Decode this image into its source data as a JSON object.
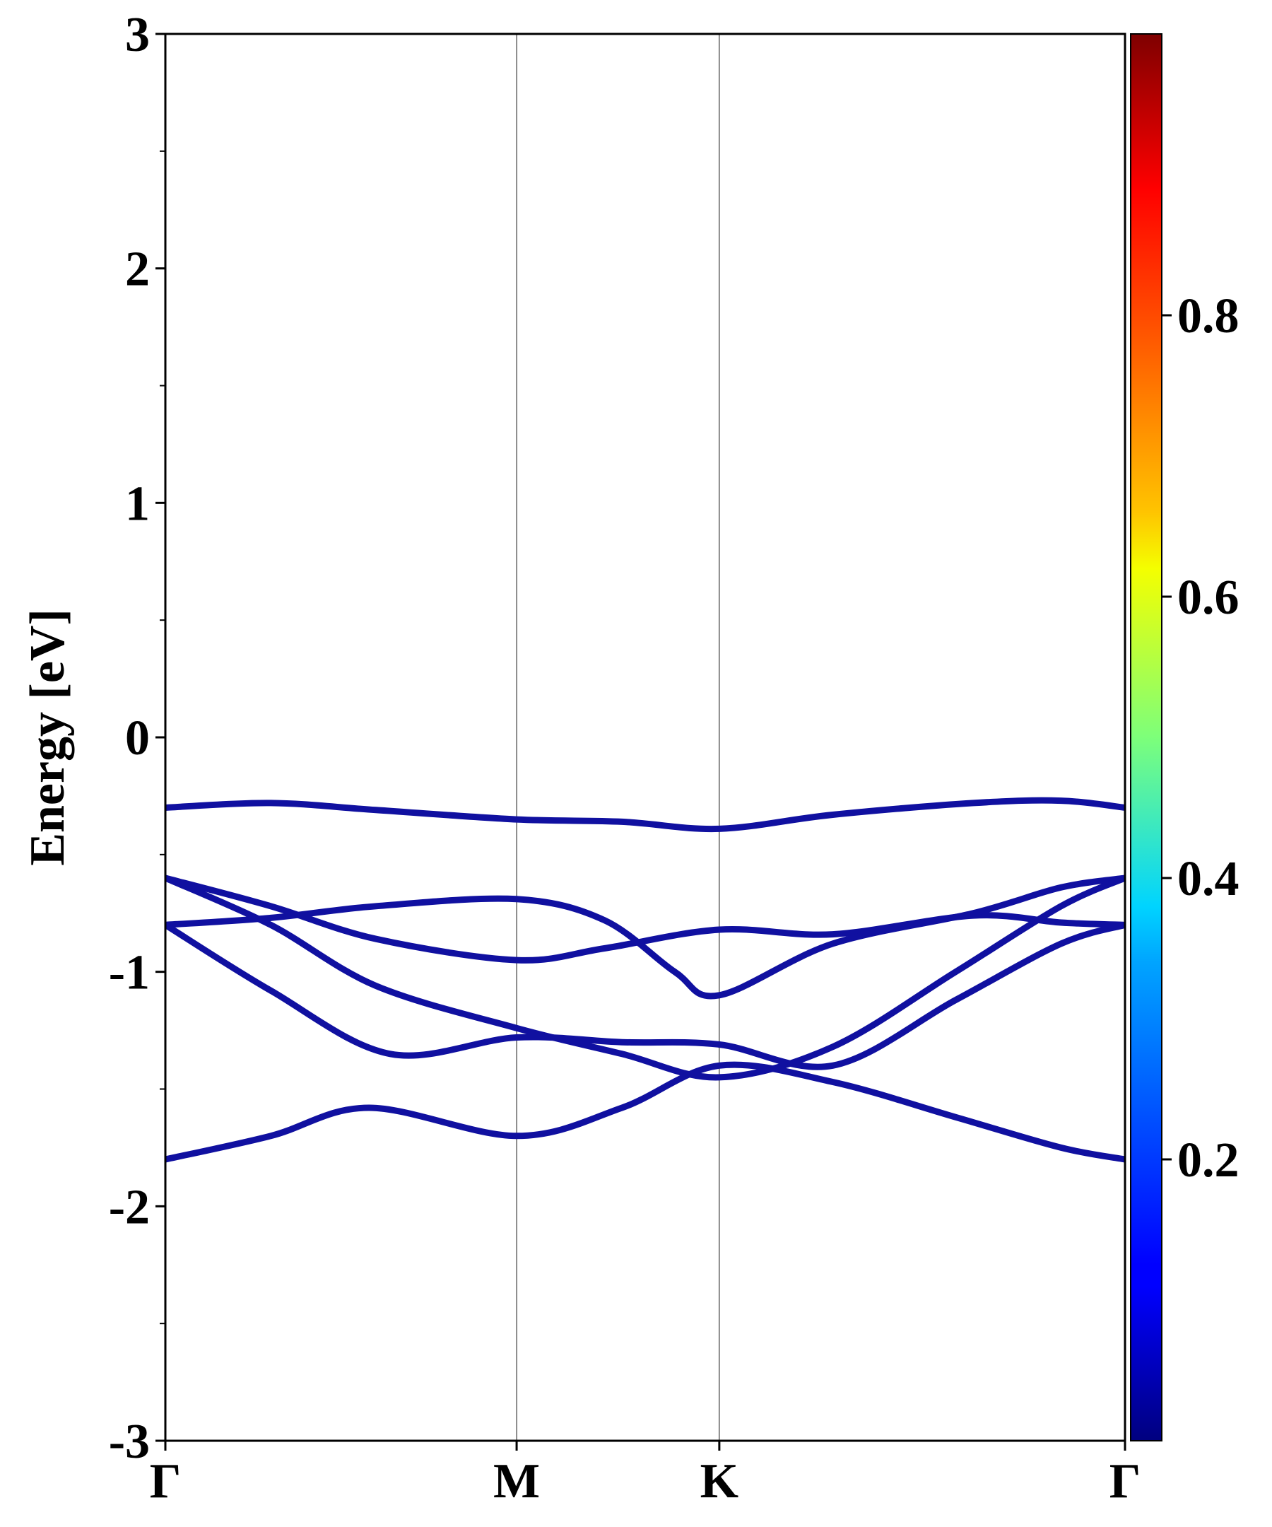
{
  "chart_data": {
    "type": "line",
    "ylabel": "Energy [eV]",
    "xlabel": "",
    "ylim": [
      -3,
      3
    ],
    "yticks": [
      3,
      2,
      1,
      0,
      -1,
      -2,
      -3
    ],
    "ytick_labels": [
      "3",
      "2",
      "1",
      "0",
      "-1",
      "-2",
      "-3"
    ],
    "kpath": {
      "labels": [
        "Γ",
        "M",
        "K",
        "Γ"
      ],
      "positions": [
        0,
        1,
        1.577,
        2.732
      ]
    },
    "band_color": "#1010a0",
    "grid": false,
    "colorbar": {
      "colormap": "jet",
      "range": [
        0,
        1
      ],
      "ticks": [
        0.2,
        0.4,
        0.6,
        0.8
      ],
      "tick_labels": [
        "0.2",
        "0.4",
        "0.6",
        "0.8"
      ]
    },
    "series": [
      {
        "x": [
          0,
          0.3,
          0.6,
          1,
          1.3,
          1.577,
          1.9,
          2.3,
          2.55,
          2.732
        ],
        "y": [
          -0.3,
          -0.28,
          -0.31,
          -0.35,
          -0.36,
          -0.39,
          -0.33,
          -0.28,
          -0.27,
          -0.3
        ]
      },
      {
        "x": [
          0,
          0.3,
          0.6,
          1,
          1.25,
          1.577,
          1.9,
          2.3,
          2.55,
          2.732
        ],
        "y": [
          -0.6,
          -0.72,
          -0.86,
          -0.95,
          -0.9,
          -0.82,
          -0.84,
          -0.76,
          -0.79,
          -0.8
        ]
      },
      {
        "x": [
          0,
          0.3,
          0.6,
          1,
          1.25,
          1.45,
          1.577,
          1.9,
          2.3,
          2.55,
          2.732
        ],
        "y": [
          -0.8,
          -0.77,
          -0.72,
          -0.69,
          -0.78,
          -1.0,
          -1.1,
          -0.88,
          -0.75,
          -0.64,
          -0.6
        ]
      },
      {
        "x": [
          0,
          0.3,
          0.6,
          1,
          1.3,
          1.577,
          1.9,
          2.25,
          2.55,
          2.732
        ],
        "y": [
          -0.6,
          -0.8,
          -1.06,
          -1.24,
          -1.35,
          -1.45,
          -1.32,
          -1.0,
          -0.72,
          -0.6
        ]
      },
      {
        "x": [
          0,
          0.3,
          0.64,
          1,
          1.3,
          1.577,
          1.9,
          2.25,
          2.55,
          2.732
        ],
        "y": [
          -0.8,
          -1.08,
          -1.35,
          -1.28,
          -1.3,
          -1.31,
          -1.4,
          -1.12,
          -0.88,
          -0.8
        ]
      },
      {
        "x": [
          0,
          0.3,
          0.58,
          1,
          1.3,
          1.577,
          1.9,
          2.25,
          2.55,
          2.732
        ],
        "y": [
          -1.8,
          -1.7,
          -1.58,
          -1.7,
          -1.58,
          -1.4,
          -1.47,
          -1.62,
          -1.75,
          -1.8
        ]
      }
    ]
  }
}
